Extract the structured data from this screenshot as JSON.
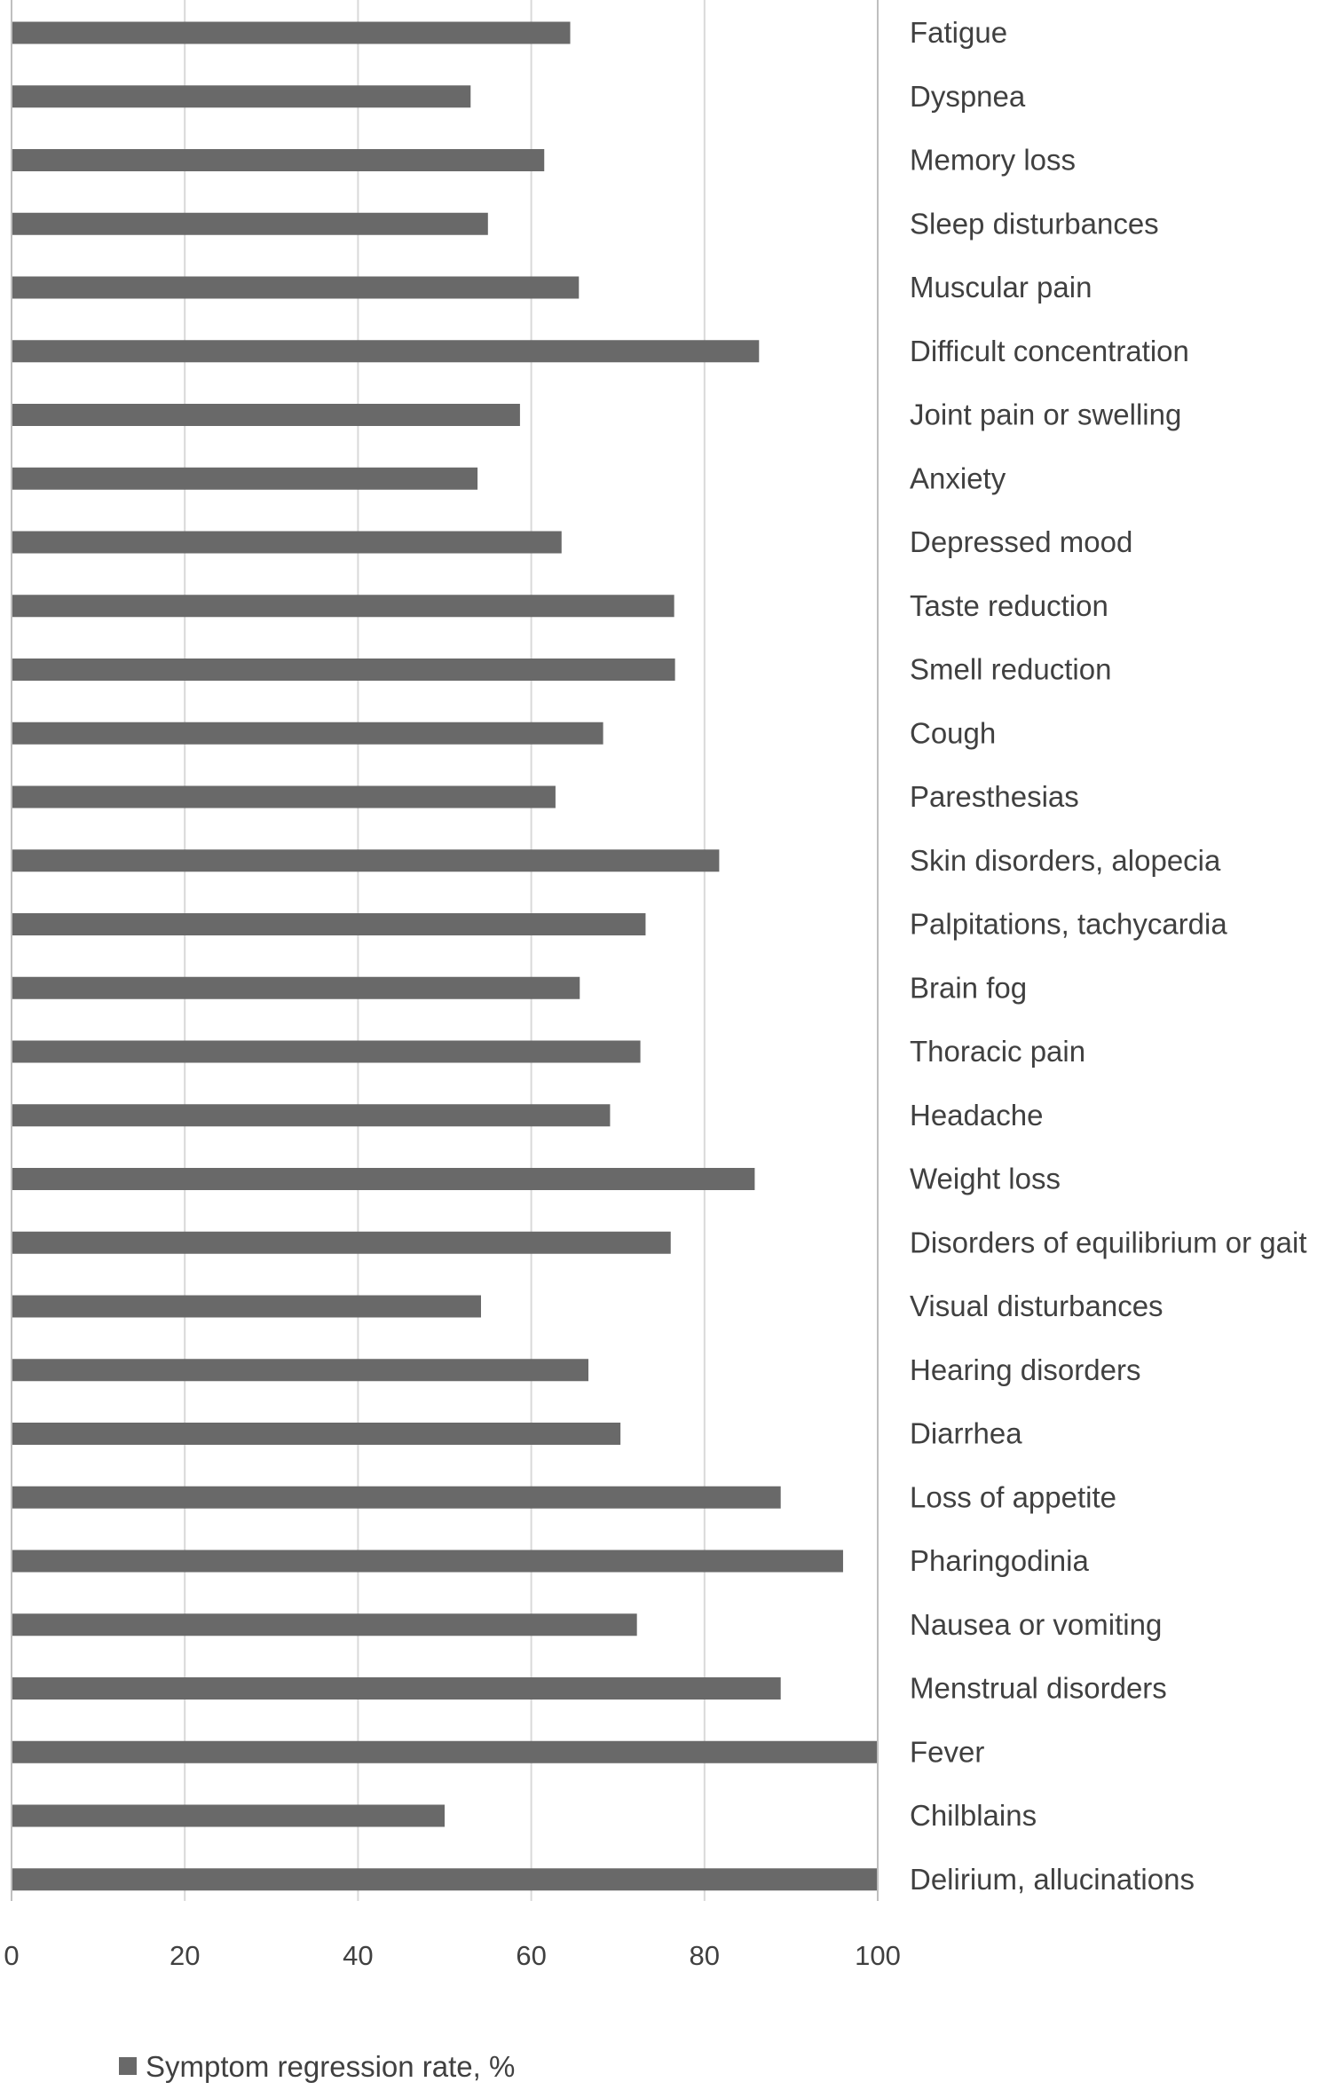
{
  "chart_data": {
    "type": "bar",
    "orientation": "horizontal",
    "categories": [
      "Fatigue",
      "Dyspnea",
      "Memory loss",
      "Sleep disturbances",
      "Muscular pain",
      "Difficult concentration",
      "Joint pain or swelling",
      "Anxiety",
      "Depressed mood",
      "Taste reduction",
      "Smell reduction",
      "Cough",
      "Paresthesias",
      "Skin disorders, alopecia",
      "Palpitations, tachycardia",
      "Brain fog",
      "Thoracic pain",
      "Headache",
      "Weight loss",
      "Disorders of equilibrium or gait",
      "Visual disturbances",
      "Hearing disorders",
      "Diarrhea",
      "Loss of appetite",
      "Pharingodinia",
      "Nausea or vomiting",
      "Menstrual disorders",
      "Fever",
      "Chilblains",
      "Delirium, allucinations"
    ],
    "series": [
      {
        "name": "Symptom regression rate, %",
        "values": [
          64.5,
          53,
          61.5,
          55,
          65.5,
          86.3,
          58.7,
          53.8,
          63.5,
          76.5,
          76.6,
          68.3,
          62.8,
          81.7,
          73.2,
          65.6,
          72.6,
          69.1,
          85.8,
          76.1,
          54.2,
          66.6,
          70.3,
          88.8,
          96,
          72.2,
          88.8,
          100,
          50,
          100
        ],
        "color": "#696969"
      }
    ],
    "xlim": [
      0,
      100
    ],
    "xticks": [
      0,
      20,
      40,
      60,
      80,
      100
    ],
    "grid": true,
    "legend_position": "bottom-left",
    "title": "",
    "xlabel": "",
    "ylabel": ""
  },
  "colors": {
    "bar": "#696969",
    "grid": "#d9d9d9",
    "axis": "#bfbfbf",
    "text": "#404040"
  }
}
